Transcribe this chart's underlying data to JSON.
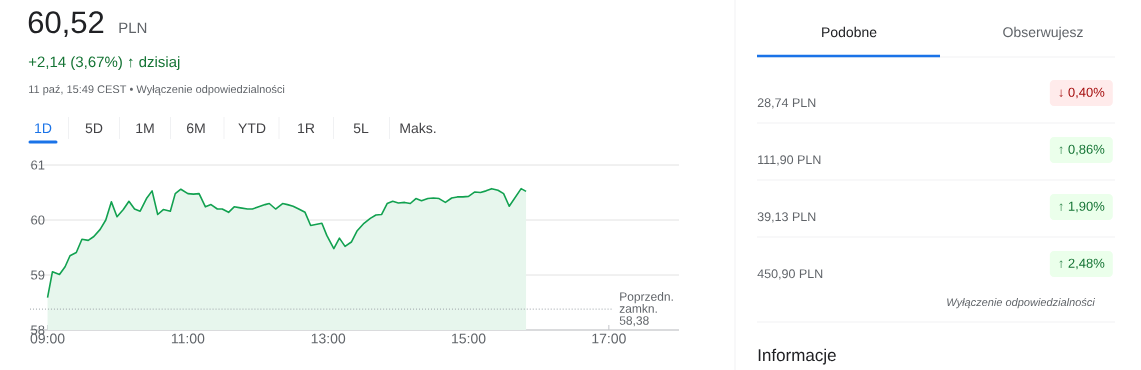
{
  "chart_data": [
    {
      "type": "area",
      "title": "60,52",
      "subtitle": "+2,14 (3,67%) ↑ dzisiaj",
      "annotations": [
        "PLN",
        "11 paź, 15:49 CEST • Wyłączenie odpowiedzialności",
        "1D",
        "5D",
        "1M",
        "6M",
        "YTD",
        "1R",
        "5L",
        "Maks."
      ],
      "color": "#12a150",
      "x": [
        9.0,
        9.07,
        9.17,
        9.25,
        9.32,
        9.41,
        9.49,
        9.58,
        9.66,
        9.75,
        9.83,
        9.91,
        9.99,
        10.08,
        10.16,
        10.24,
        10.32,
        10.41,
        10.49,
        10.57,
        10.65,
        10.75,
        10.82,
        10.9,
        11.0,
        11.08,
        11.16,
        11.25,
        11.33,
        11.42,
        11.49,
        11.58,
        11.66,
        11.75,
        11.85,
        11.92,
        12.01,
        12.1,
        12.16,
        12.25,
        12.35,
        12.42,
        12.5,
        12.58,
        12.67,
        12.75,
        12.91,
        12.98,
        13.08,
        13.16,
        13.24,
        13.33,
        13.41,
        13.51,
        13.6,
        13.68,
        13.76,
        13.84,
        13.92,
        14.0,
        14.09,
        14.17,
        14.25,
        14.33,
        14.42,
        14.5,
        14.58,
        14.67,
        14.76,
        14.84,
        14.92,
        15.0,
        15.09,
        15.17,
        15.25,
        15.33,
        15.42,
        15.5,
        15.58,
        15.75,
        15.82
      ],
      "values": [
        58.59,
        59.06,
        59.01,
        59.15,
        59.35,
        59.41,
        59.65,
        59.63,
        59.7,
        59.83,
        60.0,
        60.33,
        60.06,
        60.19,
        60.34,
        60.2,
        60.16,
        60.39,
        60.53,
        60.1,
        60.19,
        60.16,
        60.48,
        60.56,
        60.48,
        60.47,
        60.48,
        60.24,
        60.28,
        60.2,
        60.2,
        60.14,
        60.24,
        60.22,
        60.2,
        60.2,
        60.24,
        60.28,
        60.3,
        60.2,
        60.3,
        60.28,
        60.25,
        60.2,
        60.14,
        59.9,
        59.94,
        59.72,
        59.48,
        59.67,
        59.52,
        59.6,
        59.8,
        59.94,
        60.03,
        60.09,
        60.1,
        60.3,
        60.34,
        60.31,
        60.32,
        60.3,
        60.39,
        60.35,
        60.39,
        60.4,
        60.39,
        60.32,
        60.4,
        60.42,
        60.42,
        60.43,
        60.51,
        60.5,
        60.53,
        60.57,
        60.54,
        60.48,
        60.25,
        60.57,
        60.52
      ],
      "xlim": [
        8.75,
        18.0
      ],
      "ylim": [
        58,
        61
      ],
      "xticks": [
        {
          "value": 9,
          "label": "09:00"
        },
        {
          "value": 11,
          "label": "11:00"
        },
        {
          "value": 13,
          "label": "13:00"
        },
        {
          "value": 15,
          "label": "15:00"
        },
        {
          "value": 17,
          "label": "17:00"
        }
      ],
      "yticks": [
        58,
        59,
        60,
        61
      ],
      "grid": "y",
      "ref_lines": [
        {
          "axis": "y",
          "value": 58.38,
          "label": "Poprzedn. zamkn. 58,38",
          "line_style": "dotted",
          "color": "#9aa0a6"
        }
      ]
    },
    {
      "type": "other",
      "annotations": [
        "Podobne",
        "Obserwujesz",
        "28,74 PLN",
        "↓ 0,40%",
        "111,90 PLN",
        "↑ 0,86%",
        "39,13 PLN",
        "↑ 1,90%",
        "450,90 PLN",
        "↑ 2,48%",
        "Wyłączenie odpowiedzialności",
        "Informacje"
      ]
    }
  ]
}
